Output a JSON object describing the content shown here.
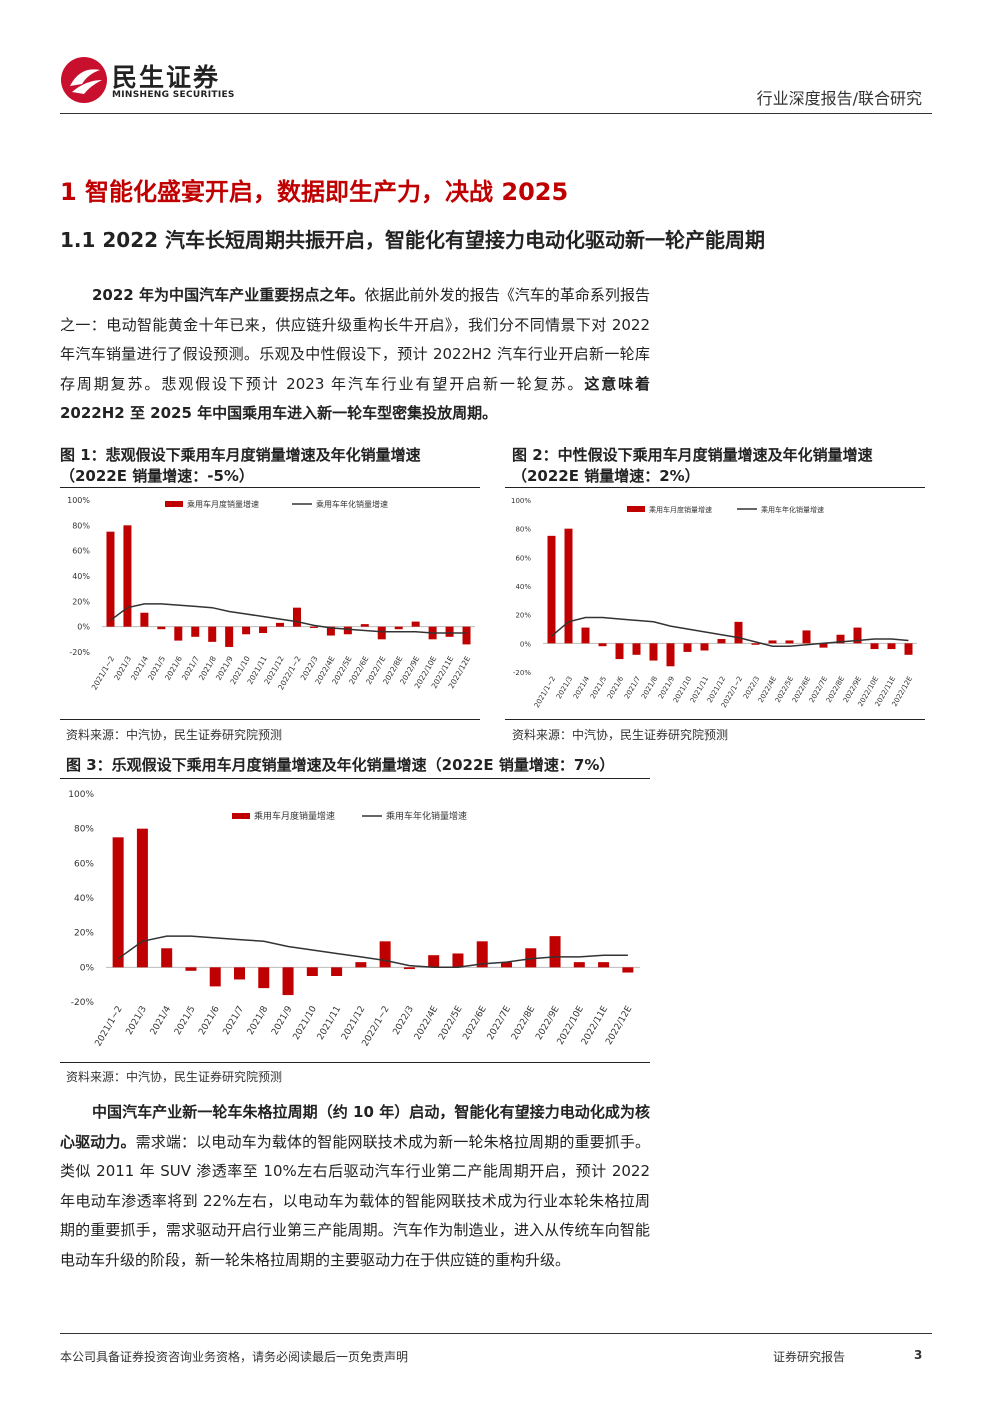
{
  "header": {
    "logo_cn": "民生证券",
    "logo_en": "MINSHENG SECURITIES",
    "report_type": "行业深度报告/联合研究"
  },
  "section": {
    "h1": "1 智能化盛宴开启，数据即生产力，决战 2025",
    "h2": "1.1 2022 汽车长短周期共振开启，智能化有望接力电动化驱动新一轮产能周期"
  },
  "para1": {
    "bold_start": "2022 年为中国汽车产业重要拐点之年。",
    "body": "依据此前外发的报告《汽车的革命系列报告之一：电动智能黄金十年已来，供应链升级重构长牛开启》，我们分不同情景下对 2022 年汽车销量进行了假设预测。乐观及中性假设下，预计 2022H2 汽车行业开启新一轮库存周期复苏。悲观假设下预计 2023 年汽车行业有望开启新一轮复苏。",
    "bold_end": "这意味着 2022H2 至 2025 年中国乘用车进入新一轮车型密集投放周期。"
  },
  "figures": [
    {
      "title": "图 1：悲观假设下乘用车月度销量增速及年化销量增速（2022E 销量增速：-5%）",
      "source": "资料来源：中汽协，民生证券研究院预测"
    },
    {
      "title": "图 2：中性假设下乘用车月度销量增速及年化销量增速（2022E 销量增速：2%）",
      "source": "资料来源：中汽协，民生证券研究院预测"
    },
    {
      "title": "图 3：乐观假设下乘用车月度销量增速及年化销量增速（2022E 销量增速：7%）",
      "source": "资料来源：中汽协，民生证券研究院预测"
    }
  ],
  "chart_data": [
    {
      "type": "bar",
      "categories": [
        "2021/1~2",
        "2021/3",
        "2021/4",
        "2021/5",
        "2021/6",
        "2021/7",
        "2021/8",
        "2021/9",
        "2021/10",
        "2021/11",
        "2021/12",
        "2022/1~2",
        "2022/3",
        "2022/4E",
        "2022/5E",
        "2022/6E",
        "2022/7E",
        "2022/8E",
        "2022/9E",
        "2022/10E",
        "2022/11E",
        "2022/12E"
      ],
      "series": [
        {
          "name": "乘用车月度销量增速",
          "kind": "bar",
          "color": "#c00000",
          "values": [
            75,
            80,
            11,
            -2,
            -11,
            -8,
            -12,
            -16,
            -6,
            -5,
            3,
            15,
            -1,
            -7,
            -6,
            2,
            -10,
            -2,
            4,
            -10,
            -8,
            -14
          ]
        },
        {
          "name": "乘用车年化销量增速",
          "kind": "line",
          "color": "#333333",
          "values": [
            5,
            15,
            18,
            18,
            17,
            16,
            15,
            12,
            10,
            8,
            6,
            4,
            1,
            -1,
            -2,
            -3,
            -4,
            -4,
            -4,
            -5,
            -5,
            -5
          ]
        }
      ],
      "ylim": [
        -20,
        100
      ],
      "yticks": [
        "100%",
        "80%",
        "60%",
        "40%",
        "20%",
        "0%",
        "-20%"
      ],
      "legend": "top"
    },
    {
      "type": "bar",
      "categories": [
        "2021/1~2",
        "2021/3",
        "2021/4",
        "2021/5",
        "2021/6",
        "2021/7",
        "2021/8",
        "2021/9",
        "2021/10",
        "2021/11",
        "2021/12",
        "2022/1~2",
        "2022/3",
        "2022/4E",
        "2022/5E",
        "2022/6E",
        "2022/7E",
        "2022/8E",
        "2022/9E",
        "2022/10E",
        "2022/11E",
        "2022/12E"
      ],
      "series": [
        {
          "name": "乘用车月度销量增速",
          "kind": "bar",
          "color": "#c00000",
          "values": [
            75,
            80,
            11,
            -2,
            -11,
            -8,
            -12,
            -16,
            -6,
            -5,
            3,
            15,
            -1,
            2,
            2,
            9,
            -3,
            6,
            11,
            -4,
            -4,
            -8
          ]
        },
        {
          "name": "乘用车年化销量增速",
          "kind": "line",
          "color": "#333333",
          "values": [
            5,
            15,
            18,
            18,
            17,
            16,
            15,
            12,
            10,
            8,
            6,
            4,
            1,
            -2,
            -2,
            -1,
            0,
            1,
            2,
            3,
            3,
            2
          ]
        }
      ],
      "ylim": [
        -20,
        100
      ],
      "yticks": [
        "100%",
        "80%",
        "60%",
        "40%",
        "20%",
        "0%",
        "-20%"
      ],
      "legend": "top"
    },
    {
      "type": "bar",
      "categories": [
        "2021/1~2",
        "2021/3",
        "2021/4",
        "2021/5",
        "2021/6",
        "2021/7",
        "2021/8",
        "2021/9",
        "2021/10",
        "2021/11",
        "2021/12",
        "2022/1~2",
        "2022/3",
        "2022/4E",
        "2022/5E",
        "2022/6E",
        "2022/7E",
        "2022/8E",
        "2022/9E",
        "2022/10E",
        "2022/11E",
        "2022/12E"
      ],
      "series": [
        {
          "name": "乘用车月度销量增速",
          "kind": "bar",
          "color": "#c00000",
          "values": [
            75,
            80,
            11,
            -2,
            -11,
            -7,
            -12,
            -16,
            -5,
            -5,
            3,
            15,
            -1,
            7,
            8,
            15,
            3,
            11,
            18,
            3,
            3,
            -3
          ]
        },
        {
          "name": "乘用车年化销量增速",
          "kind": "line",
          "color": "#333333",
          "values": [
            5,
            15,
            18,
            18,
            17,
            16,
            15,
            12,
            10,
            8,
            6,
            4,
            1,
            0,
            0,
            2,
            3,
            5,
            6,
            6,
            7,
            7
          ]
        }
      ],
      "ylim": [
        -20,
        100
      ],
      "yticks": [
        "100%",
        "80%",
        "60%",
        "40%",
        "20%",
        "0%",
        "-20%"
      ],
      "legend": "top"
    }
  ],
  "para2": {
    "bold_start": "中国汽车产业新一轮车朱格拉周期（约 10 年）启动，智能化有望接力电动化成为核心驱动力。",
    "body": "需求端：以电动车为载体的智能网联技术成为新一轮朱格拉周期的重要抓手。类似 2011 年 SUV 渗透率至 10%左右后驱动汽车行业第二产能周期开启，预计 2022 年电动车渗透率将到 22%左右，以电动车为载体的智能网联技术成为行业本轮朱格拉周期的重要抓手，需求驱动开启行业第三产能周期。汽车作为制造业，进入从传统车向智能电动车升级的阶段，新一轮朱格拉周期的主要驱动力在于供应链的重构升级。"
  },
  "footer": {
    "disclaimer": "本公司具备证券投资咨询业务资格，请务必阅读最后一页免责声明",
    "label": "证券研究报告",
    "page": "3"
  }
}
